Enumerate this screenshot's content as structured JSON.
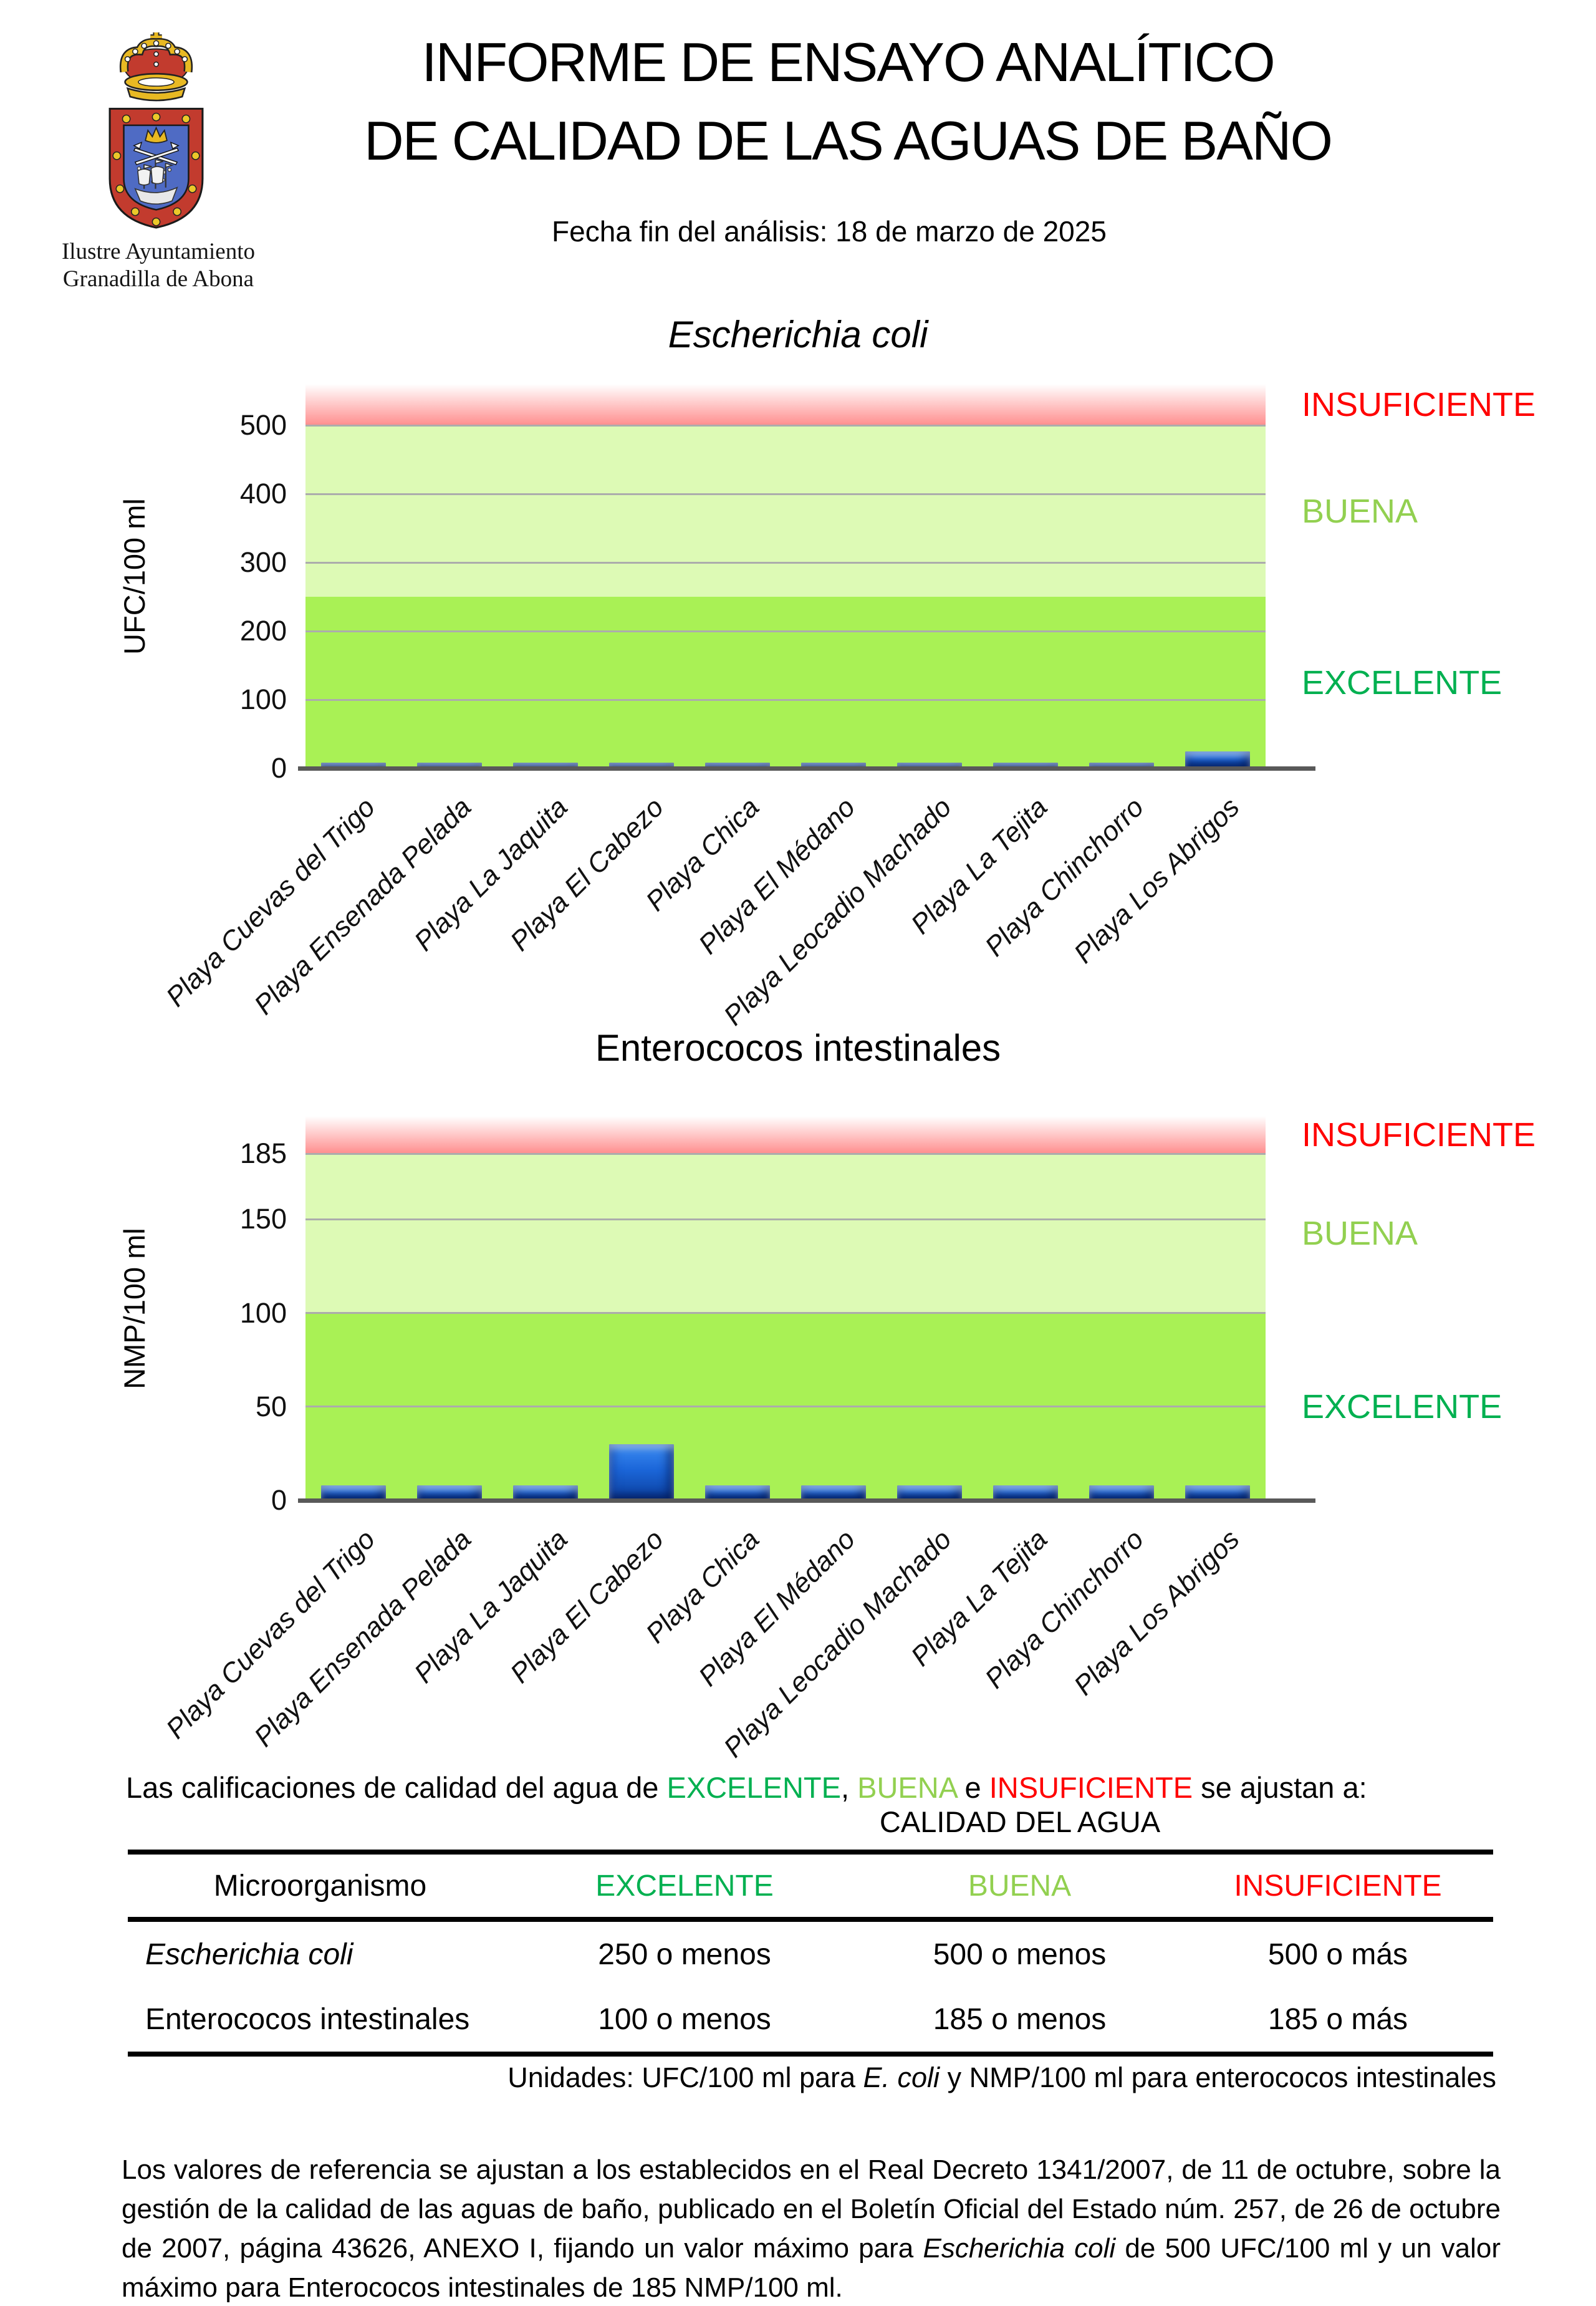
{
  "header": {
    "org_line1": "Ilustre Ayuntamiento",
    "org_line2": "Granadilla de Abona",
    "title_line1": "INFORME DE ENSAYO ANALÍTICO",
    "title_line2": "DE CALIDAD DE LAS AGUAS DE BAÑO",
    "subtitle": "Fecha fin del análisis: 18 de marzo de 2025"
  },
  "colors": {
    "excelente_text": "#00B050",
    "buena_text": "#92D050",
    "insuficiente_text": "#FF0000",
    "zone_excelente": "#A9F155",
    "zone_buena": "#DDFAB5",
    "zone_insuficiente": "#FF8E8E",
    "bar": "#1B66D9",
    "gridline": "#ACACAC",
    "axis": "#595959"
  },
  "chart_data": [
    {
      "type": "bar",
      "title": "Escherichia coli",
      "title_italic": true,
      "ylabel": "UFC/100 ml",
      "ylim": [
        0,
        560
      ],
      "yticks": [
        0,
        100,
        200,
        300,
        400,
        500
      ],
      "grid": true,
      "legend_position": "right",
      "categories": [
        "Playa Cuevas del Trigo",
        "Playa Ensenada Pelada",
        "Playa La Jaquita",
        "Playa El Cabezo",
        "Playa Chica",
        "Playa El Médano",
        "Playa Leocadio Machado",
        "Playa La Tejita",
        "Playa Chinchorro",
        "Playa Los Abrigos"
      ],
      "values": [
        8,
        8,
        8,
        8,
        8,
        8,
        8,
        8,
        8,
        25
      ],
      "zones": [
        {
          "label": "EXCELENTE",
          "from": 0,
          "to": 250
        },
        {
          "label": "BUENA",
          "from": 250,
          "to": 500
        },
        {
          "label": "INSUFICIENTE",
          "from": 500,
          "to": 560
        }
      ]
    },
    {
      "type": "bar",
      "title": "Enterococos intestinales",
      "title_italic": false,
      "ylabel": "NMP/100 ml",
      "ylim": [
        0,
        205
      ],
      "yticks": [
        0,
        50,
        100,
        150,
        185
      ],
      "grid": true,
      "legend_position": "right",
      "categories": [
        "Playa Cuevas del Trigo",
        "Playa Ensenada Pelada",
        "Playa La Jaquita",
        "Playa El Cabezo",
        "Playa Chica",
        "Playa El Médano",
        "Playa Leocadio Machado",
        "Playa La Tejita",
        "Playa Chinchorro",
        "Playa Los Abrigos"
      ],
      "values": [
        8,
        8,
        8,
        30,
        8,
        8,
        8,
        8,
        8,
        8
      ],
      "zones": [
        {
          "label": "EXCELENTE",
          "from": 0,
          "to": 100
        },
        {
          "label": "BUENA",
          "from": 100,
          "to": 185
        },
        {
          "label": "INSUFICIENTE",
          "from": 185,
          "to": 205
        }
      ]
    }
  ],
  "intro": {
    "p1": "Las calificaciones de calidad del agua de ",
    "w1": "EXCELENTE",
    "p2": ", ",
    "w2": "BUENA",
    "p3": " e ",
    "w3": "INSUFICIENTE",
    "p4": " se ajustan a:"
  },
  "table": {
    "caption": "CALIDAD DEL AGUA",
    "col_headers": [
      "Microorganismo",
      "EXCELENTE",
      "BUENA",
      "INSUFICIENTE"
    ],
    "rows": [
      {
        "name": "Escherichia coli",
        "excelente": "250 o menos",
        "buena": "500 o menos",
        "insuficiente": "500 o más"
      },
      {
        "name": "Enterococos intestinales",
        "excelente": "100 o menos",
        "buena": "185 o menos",
        "insuficiente": "185 o más"
      }
    ]
  },
  "units_note": {
    "p1": "Unidades: UFC/100 ml para ",
    "italic": "E. coli",
    "p2": " y NMP/100 ml para enterococos intestinales"
  },
  "footer": {
    "p1": "Los valores de referencia se ajustan a los establecidos en el Real Decreto 1341/2007, de 11 de octubre, sobre la gestión de la calidad de las aguas de baño, publicado en el Boletín Oficial del Estado núm. 257, de 26 de octubre de 2007, página 43626, ANEXO I, fijando un valor máximo para ",
    "italic": "Escherichia coli",
    "p2": " de 500 UFC/100 ml y un valor máximo para Enterococos intestinales de 185 NMP/100 ml."
  }
}
